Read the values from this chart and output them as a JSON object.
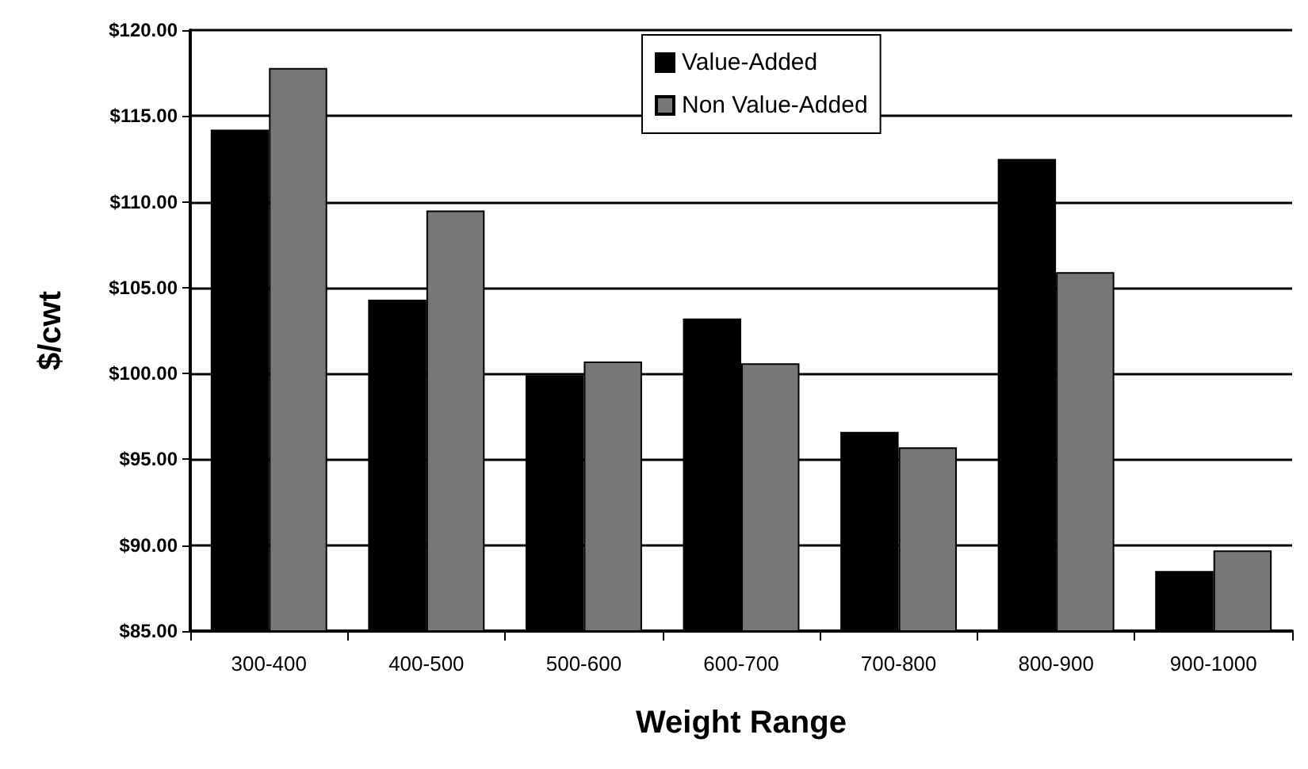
{
  "chart_data": {
    "type": "bar",
    "xlabel": "Weight Range",
    "ylabel": "$/cwt",
    "categories": [
      "300-400",
      "400-500",
      "500-600",
      "600-700",
      "700-800",
      "800-900",
      "900-1000"
    ],
    "series": [
      {
        "name": "Value-Added",
        "color": "#000000",
        "values": [
          114.2,
          104.3,
          99.9,
          103.2,
          96.6,
          112.5,
          88.5
        ]
      },
      {
        "name": "Non Value-Added",
        "color": "#777777",
        "values": [
          117.8,
          109.5,
          100.7,
          100.6,
          95.7,
          105.9,
          89.7
        ]
      }
    ],
    "ylim": [
      85,
      120
    ],
    "yticks": [
      {
        "value": 85,
        "label": "$85.00"
      },
      {
        "value": 90,
        "label": "$90.00"
      },
      {
        "value": 95,
        "label": "$95.00"
      },
      {
        "value": 100,
        "label": "$100.00"
      },
      {
        "value": 105,
        "label": "$105.00"
      },
      {
        "value": 110,
        "label": "$110.00"
      },
      {
        "value": 115,
        "label": "$115.00"
      },
      {
        "value": 120,
        "label": "$120.00"
      }
    ],
    "grid": "y",
    "legend": "top"
  }
}
